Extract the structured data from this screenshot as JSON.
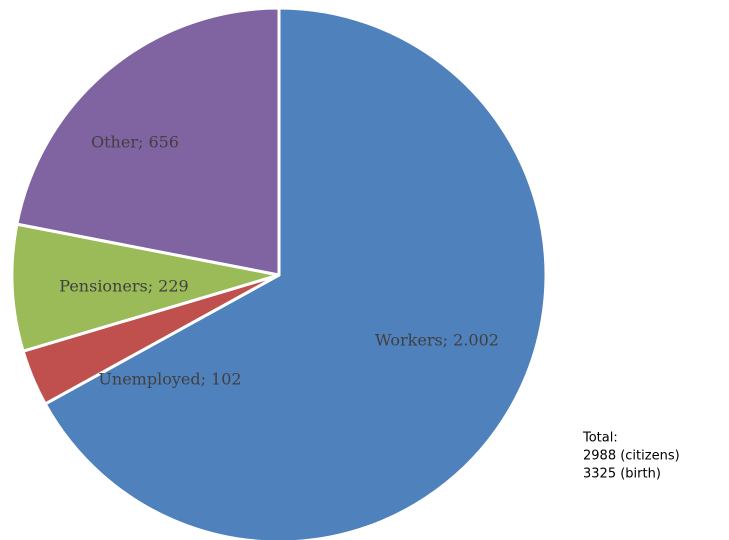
{
  "chart_data": {
    "type": "pie",
    "values": [
      2002,
      102,
      229,
      656
    ],
    "value_labels": [
      "Workers;  2.002",
      "Unemployed;  102",
      "Pensioners;  229",
      "Other;  656"
    ],
    "colors": [
      "#4f81bd",
      "#c0504d",
      "#9bbb59",
      "#8064a2"
    ],
    "annotations": [
      "Total:",
      "2988 (citizens)",
      "3325 (birth)"
    ]
  }
}
